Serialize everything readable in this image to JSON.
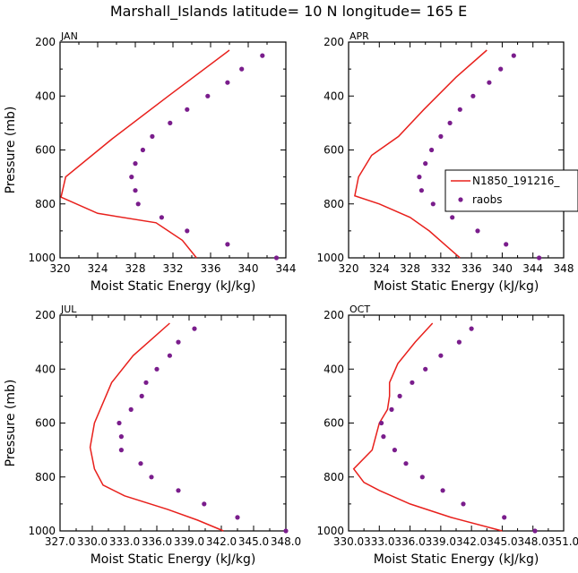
{
  "figure": {
    "title": "Marshall_Islands  latitude= 10 N longitude= 165 E"
  },
  "colors": {
    "model": "#e8201c",
    "obs": "#7a1d8c",
    "axis": "#000000"
  },
  "legend": {
    "model_label": "N1850_191216_",
    "obs_label": "raobs"
  },
  "chart_data": [
    {
      "type": "line",
      "panel": "JAN",
      "title": "JAN",
      "xlabel": "Moist Static Energy (kJ/kg)",
      "ylabel": "Pressure (mb)",
      "xlim": [
        320,
        344
      ],
      "ylim": [
        200,
        1000
      ],
      "xticks": [
        320,
        324,
        328,
        332,
        336,
        340,
        344
      ],
      "xtick_labels": [
        "320",
        "324",
        "328",
        "332",
        "336",
        "340",
        "344"
      ],
      "yticks": [
        200,
        400,
        600,
        800,
        1000
      ],
      "ytick_labels": [
        "200",
        "400",
        "600",
        "800",
        "1000"
      ],
      "series": [
        {
          "name": "N1850_191216_",
          "style": "line",
          "points": [
            [
              338.0,
              230
            ],
            [
              331.5,
              400
            ],
            [
              325.5,
              560
            ],
            [
              320.6,
              700
            ],
            [
              320.1,
              775
            ],
            [
              324.0,
              835
            ],
            [
              330.2,
              870
            ],
            [
              333.0,
              935
            ],
            [
              334.5,
              1000
            ]
          ]
        },
        {
          "name": "raobs",
          "style": "markers",
          "points": [
            [
              341.5,
              250
            ],
            [
              339.3,
              300
            ],
            [
              337.8,
              350
            ],
            [
              335.7,
              400
            ],
            [
              333.5,
              450
            ],
            [
              331.7,
              500
            ],
            [
              329.8,
              550
            ],
            [
              328.8,
              600
            ],
            [
              328.0,
              650
            ],
            [
              327.6,
              700
            ],
            [
              328.0,
              750
            ],
            [
              328.3,
              800
            ],
            [
              330.8,
              850
            ],
            [
              333.5,
              900
            ],
            [
              337.8,
              950
            ],
            [
              343.0,
              1000
            ]
          ]
        }
      ]
    },
    {
      "type": "line",
      "panel": "APR",
      "title": "APR",
      "xlabel": "Moist Static Energy (kJ/kg)",
      "ylabel": "",
      "xlim": [
        320,
        348
      ],
      "ylim": [
        200,
        1000
      ],
      "xticks": [
        320,
        324,
        328,
        332,
        336,
        340,
        344,
        348
      ],
      "xtick_labels": [
        "320",
        "324",
        "328",
        "332",
        "336",
        "340",
        "344",
        "348"
      ],
      "yticks": [
        200,
        400,
        600,
        800,
        1000
      ],
      "ytick_labels": [
        "200",
        "400",
        "600",
        "800",
        "1000"
      ],
      "series": [
        {
          "name": "N1850_191216_",
          "style": "line",
          "points": [
            [
              338.0,
              230
            ],
            [
              334.0,
              330
            ],
            [
              329.8,
              450
            ],
            [
              326.5,
              550
            ],
            [
              323.0,
              620
            ],
            [
              321.3,
              700
            ],
            [
              320.8,
              770
            ],
            [
              324.0,
              800
            ],
            [
              328.0,
              850
            ],
            [
              330.5,
              900
            ],
            [
              332.5,
              950
            ],
            [
              334.5,
              1000
            ]
          ]
        },
        {
          "name": "raobs",
          "style": "markers",
          "points": [
            [
              341.5,
              250
            ],
            [
              339.8,
              300
            ],
            [
              338.3,
              350
            ],
            [
              336.2,
              400
            ],
            [
              334.5,
              450
            ],
            [
              333.2,
              500
            ],
            [
              332.0,
              550
            ],
            [
              330.8,
              600
            ],
            [
              330.0,
              650
            ],
            [
              329.2,
              700
            ],
            [
              329.5,
              750
            ],
            [
              331.0,
              800
            ],
            [
              333.5,
              850
            ],
            [
              336.8,
              900
            ],
            [
              340.5,
              950
            ],
            [
              344.8,
              1000
            ]
          ]
        }
      ]
    },
    {
      "type": "line",
      "panel": "JUL",
      "title": "JUL",
      "xlabel": "Moist Static Energy (kJ/kg)",
      "ylabel": "Pressure (mb)",
      "xlim": [
        327,
        348
      ],
      "ylim": [
        200,
        1000
      ],
      "xticks": [
        327,
        330,
        333,
        336,
        339,
        342,
        345,
        348
      ],
      "xtick_labels": [
        "327.0",
        "330.0",
        "333.0",
        "336.0",
        "339.0",
        "342.0",
        "345.0",
        "348.0"
      ],
      "yticks": [
        200,
        400,
        600,
        800,
        1000
      ],
      "ytick_labels": [
        "200",
        "400",
        "600",
        "800",
        "1000"
      ],
      "series": [
        {
          "name": "N1850_191216_",
          "style": "line",
          "points": [
            [
              337.2,
              230
            ],
            [
              333.8,
              350
            ],
            [
              331.8,
              450
            ],
            [
              330.2,
              600
            ],
            [
              329.8,
              690
            ],
            [
              330.2,
              770
            ],
            [
              331.0,
              830
            ],
            [
              333.0,
              870
            ],
            [
              337.0,
              920
            ],
            [
              339.8,
              960
            ],
            [
              342.2,
              1000
            ]
          ]
        },
        {
          "name": "raobs",
          "style": "markers",
          "points": [
            [
              339.5,
              250
            ],
            [
              338.0,
              300
            ],
            [
              337.2,
              350
            ],
            [
              336.0,
              400
            ],
            [
              335.0,
              450
            ],
            [
              334.6,
              500
            ],
            [
              333.6,
              550
            ],
            [
              332.5,
              600
            ],
            [
              332.7,
              650
            ],
            [
              332.7,
              700
            ],
            [
              334.5,
              750
            ],
            [
              335.5,
              800
            ],
            [
              338.0,
              850
            ],
            [
              340.4,
              900
            ],
            [
              343.5,
              950
            ],
            [
              348.0,
              1000
            ]
          ]
        }
      ]
    },
    {
      "type": "line",
      "panel": "OCT",
      "title": "OCT",
      "xlabel": "Moist Static Energy (kJ/kg)",
      "ylabel": "",
      "xlim": [
        330,
        351
      ],
      "ylim": [
        200,
        1000
      ],
      "xticks": [
        330,
        333,
        336,
        339,
        342,
        345,
        348,
        351
      ],
      "xtick_labels": [
        "330.0",
        "333.0",
        "336.0",
        "339.0",
        "342.0",
        "345.0",
        "348.0",
        "351.0"
      ],
      "yticks": [
        200,
        400,
        600,
        800,
        1000
      ],
      "ytick_labels": [
        "200",
        "400",
        "600",
        "800",
        "1000"
      ],
      "series": [
        {
          "name": "N1850_191216_",
          "style": "line",
          "points": [
            [
              338.2,
              230
            ],
            [
              336.5,
              300
            ],
            [
              334.8,
              380
            ],
            [
              334.0,
              450
            ],
            [
              334.0,
              500
            ],
            [
              333.8,
              550
            ],
            [
              333.0,
              600
            ],
            [
              332.3,
              700
            ],
            [
              330.5,
              770
            ],
            [
              331.5,
              820
            ],
            [
              333.0,
              850
            ],
            [
              336.0,
              900
            ],
            [
              340.0,
              950
            ],
            [
              345.0,
              1000
            ]
          ]
        },
        {
          "name": "raobs",
          "style": "markers",
          "points": [
            [
              342.0,
              250
            ],
            [
              340.8,
              300
            ],
            [
              339.0,
              350
            ],
            [
              337.5,
              400
            ],
            [
              336.2,
              450
            ],
            [
              335.0,
              500
            ],
            [
              334.2,
              550
            ],
            [
              333.2,
              600
            ],
            [
              333.4,
              650
            ],
            [
              334.5,
              700
            ],
            [
              335.6,
              750
            ],
            [
              337.2,
              800
            ],
            [
              339.2,
              850
            ],
            [
              341.2,
              900
            ],
            [
              345.2,
              950
            ],
            [
              348.2,
              1000
            ]
          ]
        }
      ]
    }
  ]
}
